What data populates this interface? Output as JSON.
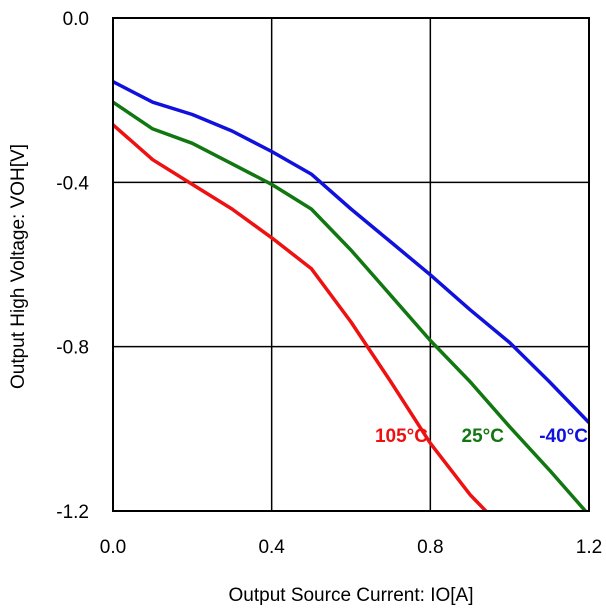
{
  "chart_data": {
    "type": "line",
    "title": "",
    "xlabel": "Output Source Current: IO[A]",
    "ylabel": "Output High Voltage: VOH[V]",
    "xlim": [
      0.0,
      1.2
    ],
    "ylim": [
      -1.2,
      0.0
    ],
    "xticks": [
      0.0,
      0.4,
      0.8,
      1.2
    ],
    "xtick_labels": [
      "0.0",
      "0.4",
      "0.8",
      "1.2"
    ],
    "yticks": [
      0.0,
      -0.4,
      -0.8,
      -1.2
    ],
    "ytick_labels": [
      "0.0",
      "-0.4",
      "-0.8",
      "-1.2"
    ],
    "grid": true,
    "legend": "inline labels",
    "series": [
      {
        "name": "105°C",
        "color": "#ee1111",
        "x": [
          0.0,
          0.1,
          0.2,
          0.3,
          0.4,
          0.5,
          0.6,
          0.7,
          0.8,
          0.9,
          0.95
        ],
        "y": [
          -0.26,
          -0.345,
          -0.405,
          -0.465,
          -0.535,
          -0.61,
          -0.74,
          -0.885,
          -1.035,
          -1.16,
          -1.21
        ]
      },
      {
        "name": "25°C",
        "color": "#117711",
        "x": [
          0.0,
          0.1,
          0.2,
          0.3,
          0.4,
          0.5,
          0.6,
          0.7,
          0.8,
          0.9,
          1.0,
          1.1,
          1.2
        ],
        "y": [
          -0.205,
          -0.27,
          -0.305,
          -0.355,
          -0.405,
          -0.465,
          -0.565,
          -0.675,
          -0.785,
          -0.885,
          -0.995,
          -1.1,
          -1.21
        ]
      },
      {
        "name": "-40°C",
        "color": "#1111dd",
        "x": [
          0.0,
          0.1,
          0.2,
          0.3,
          0.4,
          0.5,
          0.6,
          0.7,
          0.8,
          0.9,
          1.0,
          1.1,
          1.2
        ],
        "y": [
          -0.155,
          -0.205,
          -0.235,
          -0.275,
          -0.325,
          -0.38,
          -0.465,
          -0.545,
          -0.625,
          -0.71,
          -0.79,
          -0.885,
          -0.985
        ]
      }
    ]
  }
}
